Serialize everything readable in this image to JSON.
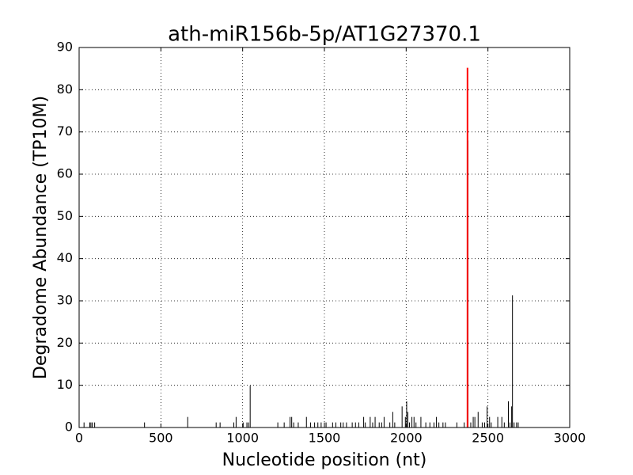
{
  "chart_data": {
    "type": "vlines",
    "title": "ath-miR156b-5p/AT1G27370.1",
    "x_label": "Nucleotide position (nt)",
    "y_label": "Degradome Abundance (TP10M)",
    "xlim": [
      0,
      3000
    ],
    "xticks": [
      0,
      500,
      1000,
      1500,
      2000,
      2500,
      3000
    ],
    "ylim": [
      0,
      90
    ],
    "yticks": [
      0,
      10,
      20,
      30,
      40,
      50,
      60,
      70,
      80,
      90
    ],
    "grid": true,
    "series": [
      {
        "color": "#000000",
        "x": [
          30,
          65,
          72,
          80,
          95,
          400,
          664,
          838,
          862,
          946,
          960,
          1003,
          1026,
          1036,
          1046,
          1215,
          1254,
          1290,
          1300,
          1312,
          1340,
          1390,
          1415,
          1440,
          1460,
          1480,
          1500,
          1510,
          1550,
          1570,
          1600,
          1615,
          1635,
          1670,
          1690,
          1710,
          1740,
          1750,
          1780,
          1795,
          1810,
          1835,
          1850,
          1865,
          1900,
          1918,
          1930,
          1975,
          1995,
          2003,
          2010,
          2020,
          2035,
          2048,
          2060,
          2090,
          2120,
          2145,
          2170,
          2185,
          2200,
          2225,
          2240,
          2310,
          2355,
          2378,
          2395,
          2410,
          2420,
          2440,
          2465,
          2480,
          2495,
          2510,
          2520,
          2560,
          2585,
          2600,
          2625,
          2635,
          2645,
          2650,
          2660,
          2675,
          2685
        ],
        "values": [
          1.2,
          1.2,
          1.2,
          1.2,
          1.2,
          1.2,
          2.5,
          1.2,
          1.2,
          1.2,
          2.5,
          1.2,
          1.2,
          1.2,
          9.9,
          1.2,
          1.2,
          2.5,
          2.5,
          1.2,
          1.2,
          2.5,
          1.2,
          1.2,
          1.2,
          1.2,
          1.2,
          1.2,
          1.2,
          1.2,
          1.2,
          1.2,
          1.2,
          1.2,
          1.2,
          1.2,
          2.5,
          1.2,
          2.5,
          1.2,
          2.5,
          1.2,
          1.2,
          2.5,
          1.2,
          3.7,
          1.2,
          5.0,
          2.5,
          6.2,
          3.7,
          1.2,
          2.5,
          2.5,
          1.2,
          2.5,
          1.2,
          1.2,
          1.2,
          2.5,
          1.2,
          1.2,
          1.2,
          1.2,
          1.2,
          68,
          1.2,
          2.5,
          2.5,
          3.7,
          1.2,
          1.2,
          5.0,
          2.5,
          1.2,
          2.5,
          2.5,
          1.2,
          6.2,
          1.2,
          5.0,
          31.3,
          1.2,
          1.2,
          1.2
        ]
      },
      {
        "color": "#ff0000",
        "width": 2,
        "x": [
          2375
        ],
        "values": [
          85.2
        ]
      }
    ]
  }
}
